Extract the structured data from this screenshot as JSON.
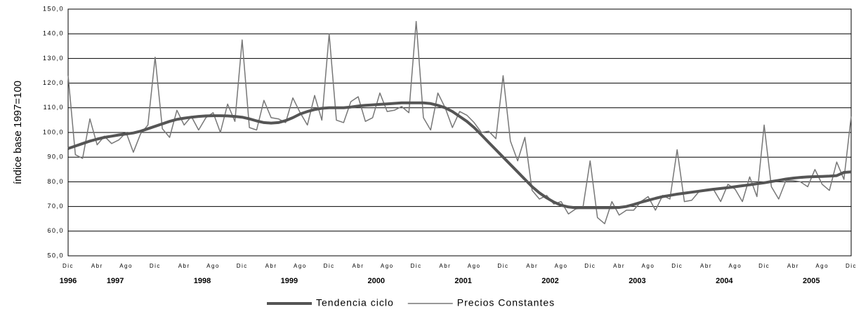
{
  "chart_data": {
    "type": "line",
    "y_label": "índice base 1997=100",
    "categories": [
      "Dic",
      null,
      null,
      null,
      "Abr",
      null,
      null,
      null,
      "Ago",
      null,
      null,
      null,
      "Dic",
      null,
      null,
      null,
      "Abr",
      null,
      null,
      null,
      "Ago",
      null,
      null,
      null,
      "Dic",
      null,
      null,
      null,
      "Abr",
      null,
      null,
      null,
      "Ago",
      null,
      null,
      null,
      "Dic",
      null,
      null,
      null,
      "Abr",
      null,
      null,
      null,
      "Ago",
      null,
      null,
      null,
      "Dic",
      null,
      null,
      null,
      "Abr",
      null,
      null,
      null,
      "Ago",
      null,
      null,
      null,
      "Dic",
      null,
      null,
      null,
      "Abr",
      null,
      null,
      null,
      "Ago",
      null,
      null,
      null,
      "Dic",
      null,
      null,
      null,
      "Abr",
      null,
      null,
      null,
      "Ago",
      null,
      null,
      null,
      "Dic",
      null,
      null,
      null,
      "Abr",
      null,
      null,
      null,
      "Ago",
      null,
      null,
      null,
      "Dic",
      null,
      null,
      null,
      "Abr",
      null,
      null,
      null,
      "Ago",
      null,
      null,
      null,
      "Dic"
    ],
    "year_labels": [
      "1996",
      "1997",
      "1998",
      "1999",
      "2000",
      "2001",
      "2002",
      "2003",
      "2004",
      "2005"
    ],
    "series": [
      {
        "name": "Tendencia ciclo",
        "color": "#555555",
        "width": 4,
        "values": [
          93.5,
          94.5,
          95.5,
          96.5,
          97.3,
          98,
          98.5,
          99,
          99.4,
          99.8,
          100.5,
          101.5,
          102.5,
          103.5,
          104.5,
          105.3,
          105.8,
          106.2,
          106.5,
          106.7,
          106.8,
          106.8,
          106.7,
          106.5,
          106.2,
          105.5,
          104.7,
          104,
          103.8,
          104,
          104.8,
          106,
          107.5,
          108.5,
          109.3,
          109.8,
          110,
          110,
          110,
          110.3,
          110.7,
          111,
          111.2,
          111.4,
          111.6,
          111.8,
          112,
          112,
          112,
          112,
          111.7,
          111,
          110,
          108.5,
          106.5,
          104.5,
          102,
          99,
          96,
          93,
          90,
          87,
          84,
          81,
          78,
          75.5,
          73.5,
          71.8,
          70.5,
          69.8,
          69.5,
          69.5,
          69.5,
          69.5,
          69.5,
          69.5,
          69.6,
          70,
          70.8,
          71.7,
          72.5,
          73.3,
          74,
          74.5,
          75,
          75.4,
          75.8,
          76.2,
          76.6,
          77,
          77.3,
          77.6,
          78,
          78.4,
          78.8,
          79.2,
          79.6,
          80.1,
          80.6,
          81.1,
          81.5,
          81.8,
          82,
          82.1,
          82.2,
          82.3,
          82.5,
          83.8,
          84
        ]
      },
      {
        "name": "Precios Constantes",
        "color": "#777777",
        "width": 1.5,
        "values": [
          123,
          91,
          89.5,
          105.5,
          95,
          98.5,
          95.5,
          97,
          100,
          92,
          99.5,
          103,
          130.5,
          101.5,
          98,
          109,
          103,
          106.5,
          101,
          106,
          108,
          100,
          111.5,
          104.5,
          137.5,
          102,
          101,
          113,
          106,
          105.5,
          104,
          114,
          108,
          103,
          115,
          105,
          140,
          105,
          104,
          112.5,
          114.5,
          104.5,
          106,
          116,
          108.5,
          109,
          110.5,
          108,
          145,
          106,
          101,
          116,
          110,
          102,
          108.5,
          107,
          104,
          100,
          100.5,
          97.5,
          123,
          96.5,
          88.5,
          98,
          76.5,
          73,
          74.5,
          71,
          72,
          67,
          69,
          69.5,
          88.5,
          65.5,
          63,
          72,
          66.5,
          68.5,
          68.5,
          72,
          74,
          68.5,
          74.5,
          73,
          93,
          72,
          72.5,
          76,
          76.5,
          77,
          72,
          79,
          77,
          72,
          82,
          74,
          103,
          78,
          73,
          80.5,
          80.5,
          80,
          78,
          85,
          79,
          76.5,
          88,
          81,
          106.5
        ]
      }
    ],
    "ylim": [
      50,
      150
    ],
    "yticks": [
      {
        "value": 50,
        "label": "50,0"
      },
      {
        "value": 60,
        "label": "60,0"
      },
      {
        "value": 70,
        "label": "70,0"
      },
      {
        "value": 80,
        "label": "80,0"
      },
      {
        "value": 90,
        "label": "90,0"
      },
      {
        "value": 100,
        "label": "100,0"
      },
      {
        "value": 110,
        "label": "110,0"
      },
      {
        "value": 120,
        "label": "120,0"
      },
      {
        "value": 130,
        "label": "130,0"
      },
      {
        "value": 140,
        "label": "140,0"
      },
      {
        "value": 150,
        "label": "150,0"
      }
    ],
    "grid": true,
    "legend": "bottom"
  }
}
